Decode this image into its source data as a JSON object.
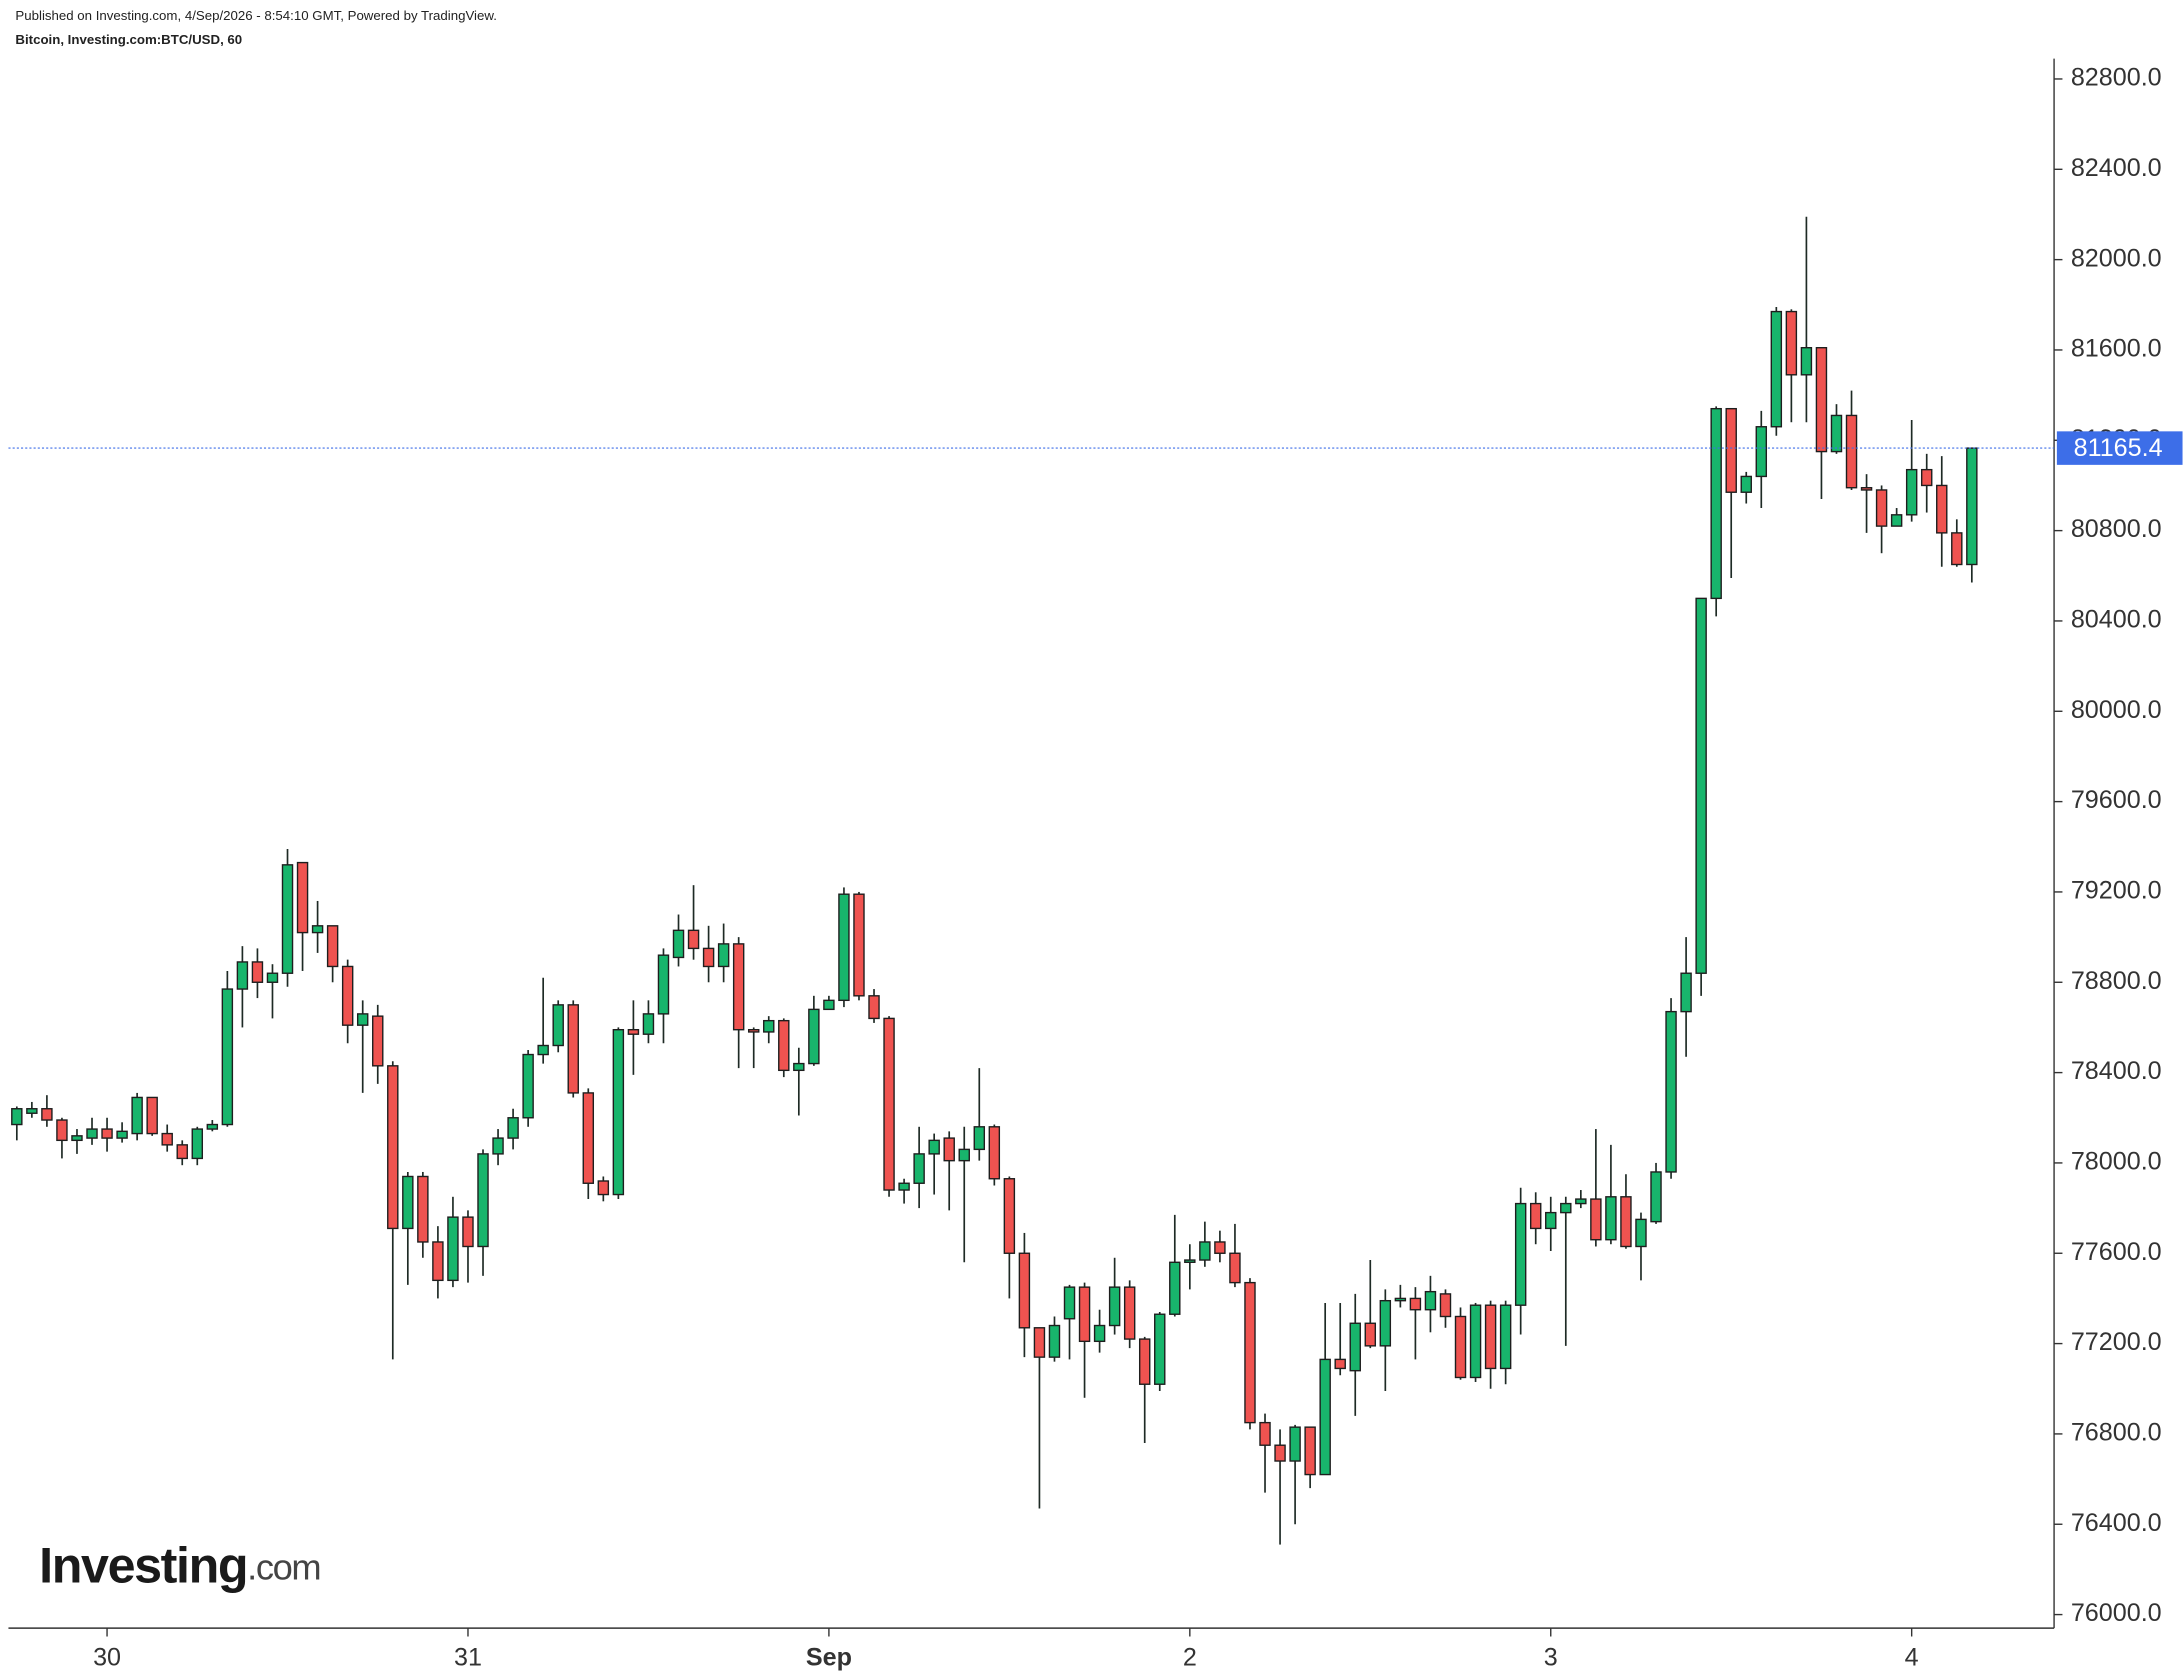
{
  "header": {
    "published": "Published on Investing.com, 4/Sep/2026 - 8:54:10 GMT, Powered by TradingView.",
    "instrument": "Bitcoin, Investing.com:BTC/USD, 60"
  },
  "logo": {
    "name": "Investing",
    "suffix": ".com"
  },
  "chart_data": {
    "type": "candlestick",
    "categories": [
      null,
      null,
      null,
      null,
      null,
      null,
      "30",
      null,
      null,
      null,
      null,
      null,
      null,
      null,
      null,
      null,
      null,
      null,
      null,
      null,
      null,
      null,
      null,
      null,
      null,
      null,
      null,
      null,
      null,
      null,
      "31",
      null,
      null,
      null,
      null,
      null,
      null,
      null,
      null,
      null,
      null,
      null,
      null,
      null,
      null,
      null,
      null,
      null,
      null,
      null,
      null,
      null,
      null,
      null,
      "Sep",
      null,
      null,
      null,
      null,
      null,
      null,
      null,
      null,
      null,
      null,
      null,
      null,
      null,
      null,
      null,
      null,
      null,
      null,
      null,
      null,
      null,
      null,
      null,
      "2",
      null,
      null,
      null,
      null,
      null,
      null,
      null,
      null,
      null,
      null,
      null,
      null,
      null,
      null,
      null,
      null,
      null,
      null,
      null,
      null,
      null,
      null,
      null,
      "3",
      null,
      null,
      null,
      null,
      null,
      null,
      null,
      null,
      null,
      null,
      null,
      null,
      null,
      null,
      null,
      null,
      null,
      null,
      null,
      null,
      null,
      null,
      null,
      "4",
      null,
      null,
      null,
      null
    ],
    "open": [
      78170,
      78220,
      78240,
      78190,
      78100,
      78110,
      78150,
      78110,
      78130,
      78290,
      78130,
      78080,
      78020,
      78150,
      78170,
      78770,
      78890,
      78800,
      78840,
      79330,
      79020,
      79050,
      78870,
      78610,
      78650,
      78430,
      77710,
      77940,
      77650,
      77480,
      77760,
      77630,
      78040,
      78110,
      78200,
      78480,
      78520,
      78700,
      78310,
      77920,
      77860,
      78590,
      78570,
      78660,
      78910,
      79030,
      78950,
      78870,
      78970,
      78590,
      78580,
      78630,
      78410,
      78440,
      78680,
      78720,
      79190,
      78740,
      78640,
      77880,
      77910,
      78040,
      78110,
      78010,
      78060,
      78160,
      77930,
      77600,
      77270,
      77140,
      77310,
      77450,
      77210,
      77280,
      77450,
      77220,
      77020,
      77330,
      77560,
      77570,
      77650,
      77600,
      77470,
      76850,
      76750,
      76680,
      76830,
      76620,
      77130,
      77080,
      77290,
      77190,
      77390,
      77400,
      77350,
      77420,
      77320,
      77050,
      77370,
      77090,
      77370,
      77820,
      77710,
      77780,
      77820,
      77840,
      77660,
      77850,
      77630,
      77740,
      77960,
      78670,
      78840,
      80500,
      81340,
      80970,
      81040,
      81260,
      81770,
      81490,
      81610,
      81150,
      81310,
      80990,
      80980,
      80820,
      80870,
      81070,
      81000,
      80790,
      80650
    ],
    "high": [
      78250,
      78270,
      78300,
      78200,
      78150,
      78200,
      78200,
      78180,
      78310,
      78290,
      78170,
      78100,
      78160,
      78190,
      78850,
      78960,
      78950,
      78880,
      79390,
      79330,
      79160,
      79050,
      78900,
      78720,
      78700,
      78450,
      77960,
      77960,
      77720,
      77850,
      77790,
      78060,
      78150,
      78240,
      78500,
      78820,
      78720,
      78720,
      78330,
      77940,
      78600,
      78720,
      78720,
      78950,
      79100,
      79230,
      79050,
      79060,
      79000,
      78600,
      78650,
      78640,
      78510,
      78740,
      78740,
      79220,
      79200,
      78770,
      78650,
      77930,
      78160,
      78130,
      78140,
      78160,
      78420,
      78170,
      77940,
      77690,
      77270,
      77320,
      77460,
      77470,
      77350,
      77580,
      77480,
      77230,
      77340,
      77770,
      77640,
      77740,
      77700,
      77730,
      77490,
      76890,
      76820,
      76840,
      76830,
      77380,
      77380,
      77420,
      77570,
      77440,
      77460,
      77450,
      77500,
      77440,
      77360,
      77380,
      77390,
      77390,
      77890,
      77870,
      77850,
      77850,
      77880,
      78150,
      78080,
      77950,
      77780,
      78000,
      78730,
      79000,
      80500,
      81350,
      81340,
      81060,
      81330,
      81790,
      81780,
      82190,
      81610,
      81360,
      81420,
      81050,
      81000,
      80900,
      81290,
      81140,
      81130,
      80850,
      81165.4
    ],
    "low": [
      78100,
      78200,
      78160,
      78020,
      78040,
      78080,
      78050,
      78090,
      78100,
      78120,
      78050,
      77990,
      77990,
      78140,
      78160,
      78600,
      78730,
      78640,
      78780,
      78850,
      78930,
      78800,
      78530,
      78310,
      78350,
      77130,
      77460,
      77580,
      77400,
      77450,
      77470,
      77500,
      77990,
      78060,
      78160,
      78440,
      78490,
      78290,
      77840,
      77830,
      77840,
      78390,
      78530,
      78530,
      78870,
      78900,
      78800,
      78800,
      78420,
      78420,
      78530,
      78380,
      78210,
      78430,
      78680,
      78690,
      78720,
      78620,
      77850,
      77820,
      77800,
      77860,
      77790,
      77560,
      78010,
      77900,
      77400,
      77140,
      76470,
      77120,
      77130,
      76960,
      77160,
      77240,
      77180,
      76760,
      76990,
      77320,
      77440,
      77540,
      77560,
      77450,
      76820,
      76540,
      76310,
      76400,
      76560,
      76620,
      77060,
      76880,
      77180,
      76990,
      77360,
      77130,
      77250,
      77270,
      77040,
      77030,
      77000,
      77020,
      77240,
      77640,
      77610,
      77190,
      77800,
      77630,
      77640,
      77620,
      77480,
      77730,
      77930,
      78470,
      78740,
      80420,
      80590,
      80920,
      80900,
      81220,
      81280,
      81280,
      80940,
      81140,
      80980,
      80790,
      80700,
      80830,
      80840,
      80880,
      80640,
      80640,
      80570
    ],
    "close": [
      78240,
      78240,
      78190,
      78100,
      78120,
      78150,
      78110,
      78140,
      78290,
      78130,
      78080,
      78020,
      78150,
      78170,
      78770,
      78890,
      78800,
      78840,
      79320,
      79020,
      79050,
      78870,
      78610,
      78660,
      78430,
      77710,
      77940,
      77650,
      77480,
      77760,
      77630,
      78040,
      78110,
      78200,
      78480,
      78520,
      78700,
      78310,
      77910,
      77860,
      78590,
      78570,
      78660,
      78920,
      79030,
      78950,
      78870,
      78970,
      78590,
      78580,
      78630,
      78410,
      78440,
      78680,
      78720,
      79190,
      78740,
      78640,
      77880,
      77910,
      78040,
      78100,
      78010,
      78060,
      78160,
      77930,
      77600,
      77270,
      77140,
      77280,
      77450,
      77210,
      77280,
      77450,
      77220,
      77020,
      77330,
      77560,
      77570,
      77650,
      77600,
      77470,
      76850,
      76750,
      76680,
      76830,
      76620,
      77130,
      77090,
      77290,
      77190,
      77390,
      77400,
      77350,
      77430,
      77320,
      77050,
      77370,
      77090,
      77370,
      77820,
      77710,
      77780,
      77820,
      77840,
      77660,
      77850,
      77630,
      77750,
      77960,
      78670,
      78840,
      80500,
      81340,
      80970,
      81040,
      81260,
      81770,
      81490,
      81610,
      81150,
      81310,
      80990,
      80980,
      80820,
      80870,
      81070,
      81000,
      80790,
      80650,
      81165.4
    ],
    "up_color": "#18b56c",
    "down_color": "#ef5350",
    "last_price": 81165.4,
    "last_price_color": "#3d6ee8",
    "ylim": [
      75940,
      82890
    ],
    "yticks": [
      {
        "value": 76000,
        "label": "76000.0"
      },
      {
        "value": 76400,
        "label": "76400.0"
      },
      {
        "value": 76800,
        "label": "76800.0"
      },
      {
        "value": 77200,
        "label": "77200.0"
      },
      {
        "value": 77600,
        "label": "77600.0"
      },
      {
        "value": 78000,
        "label": "78000.0"
      },
      {
        "value": 78400,
        "label": "78400.0"
      },
      {
        "value": 78800,
        "label": "78800.0"
      },
      {
        "value": 79200,
        "label": "79200.0"
      },
      {
        "value": 79600,
        "label": "79600.0"
      },
      {
        "value": 80000,
        "label": "80000.0"
      },
      {
        "value": 80400,
        "label": "80400.0"
      },
      {
        "value": 80800,
        "label": "80800.0"
      },
      {
        "value": 81200,
        "label": "81200.0"
      },
      {
        "value": 81600,
        "label": "81600.0"
      },
      {
        "value": 82000,
        "label": "82000.0"
      },
      {
        "value": 82400,
        "label": "82400.0"
      },
      {
        "value": 82800,
        "label": "82800.0"
      }
    ],
    "grid": false
  }
}
